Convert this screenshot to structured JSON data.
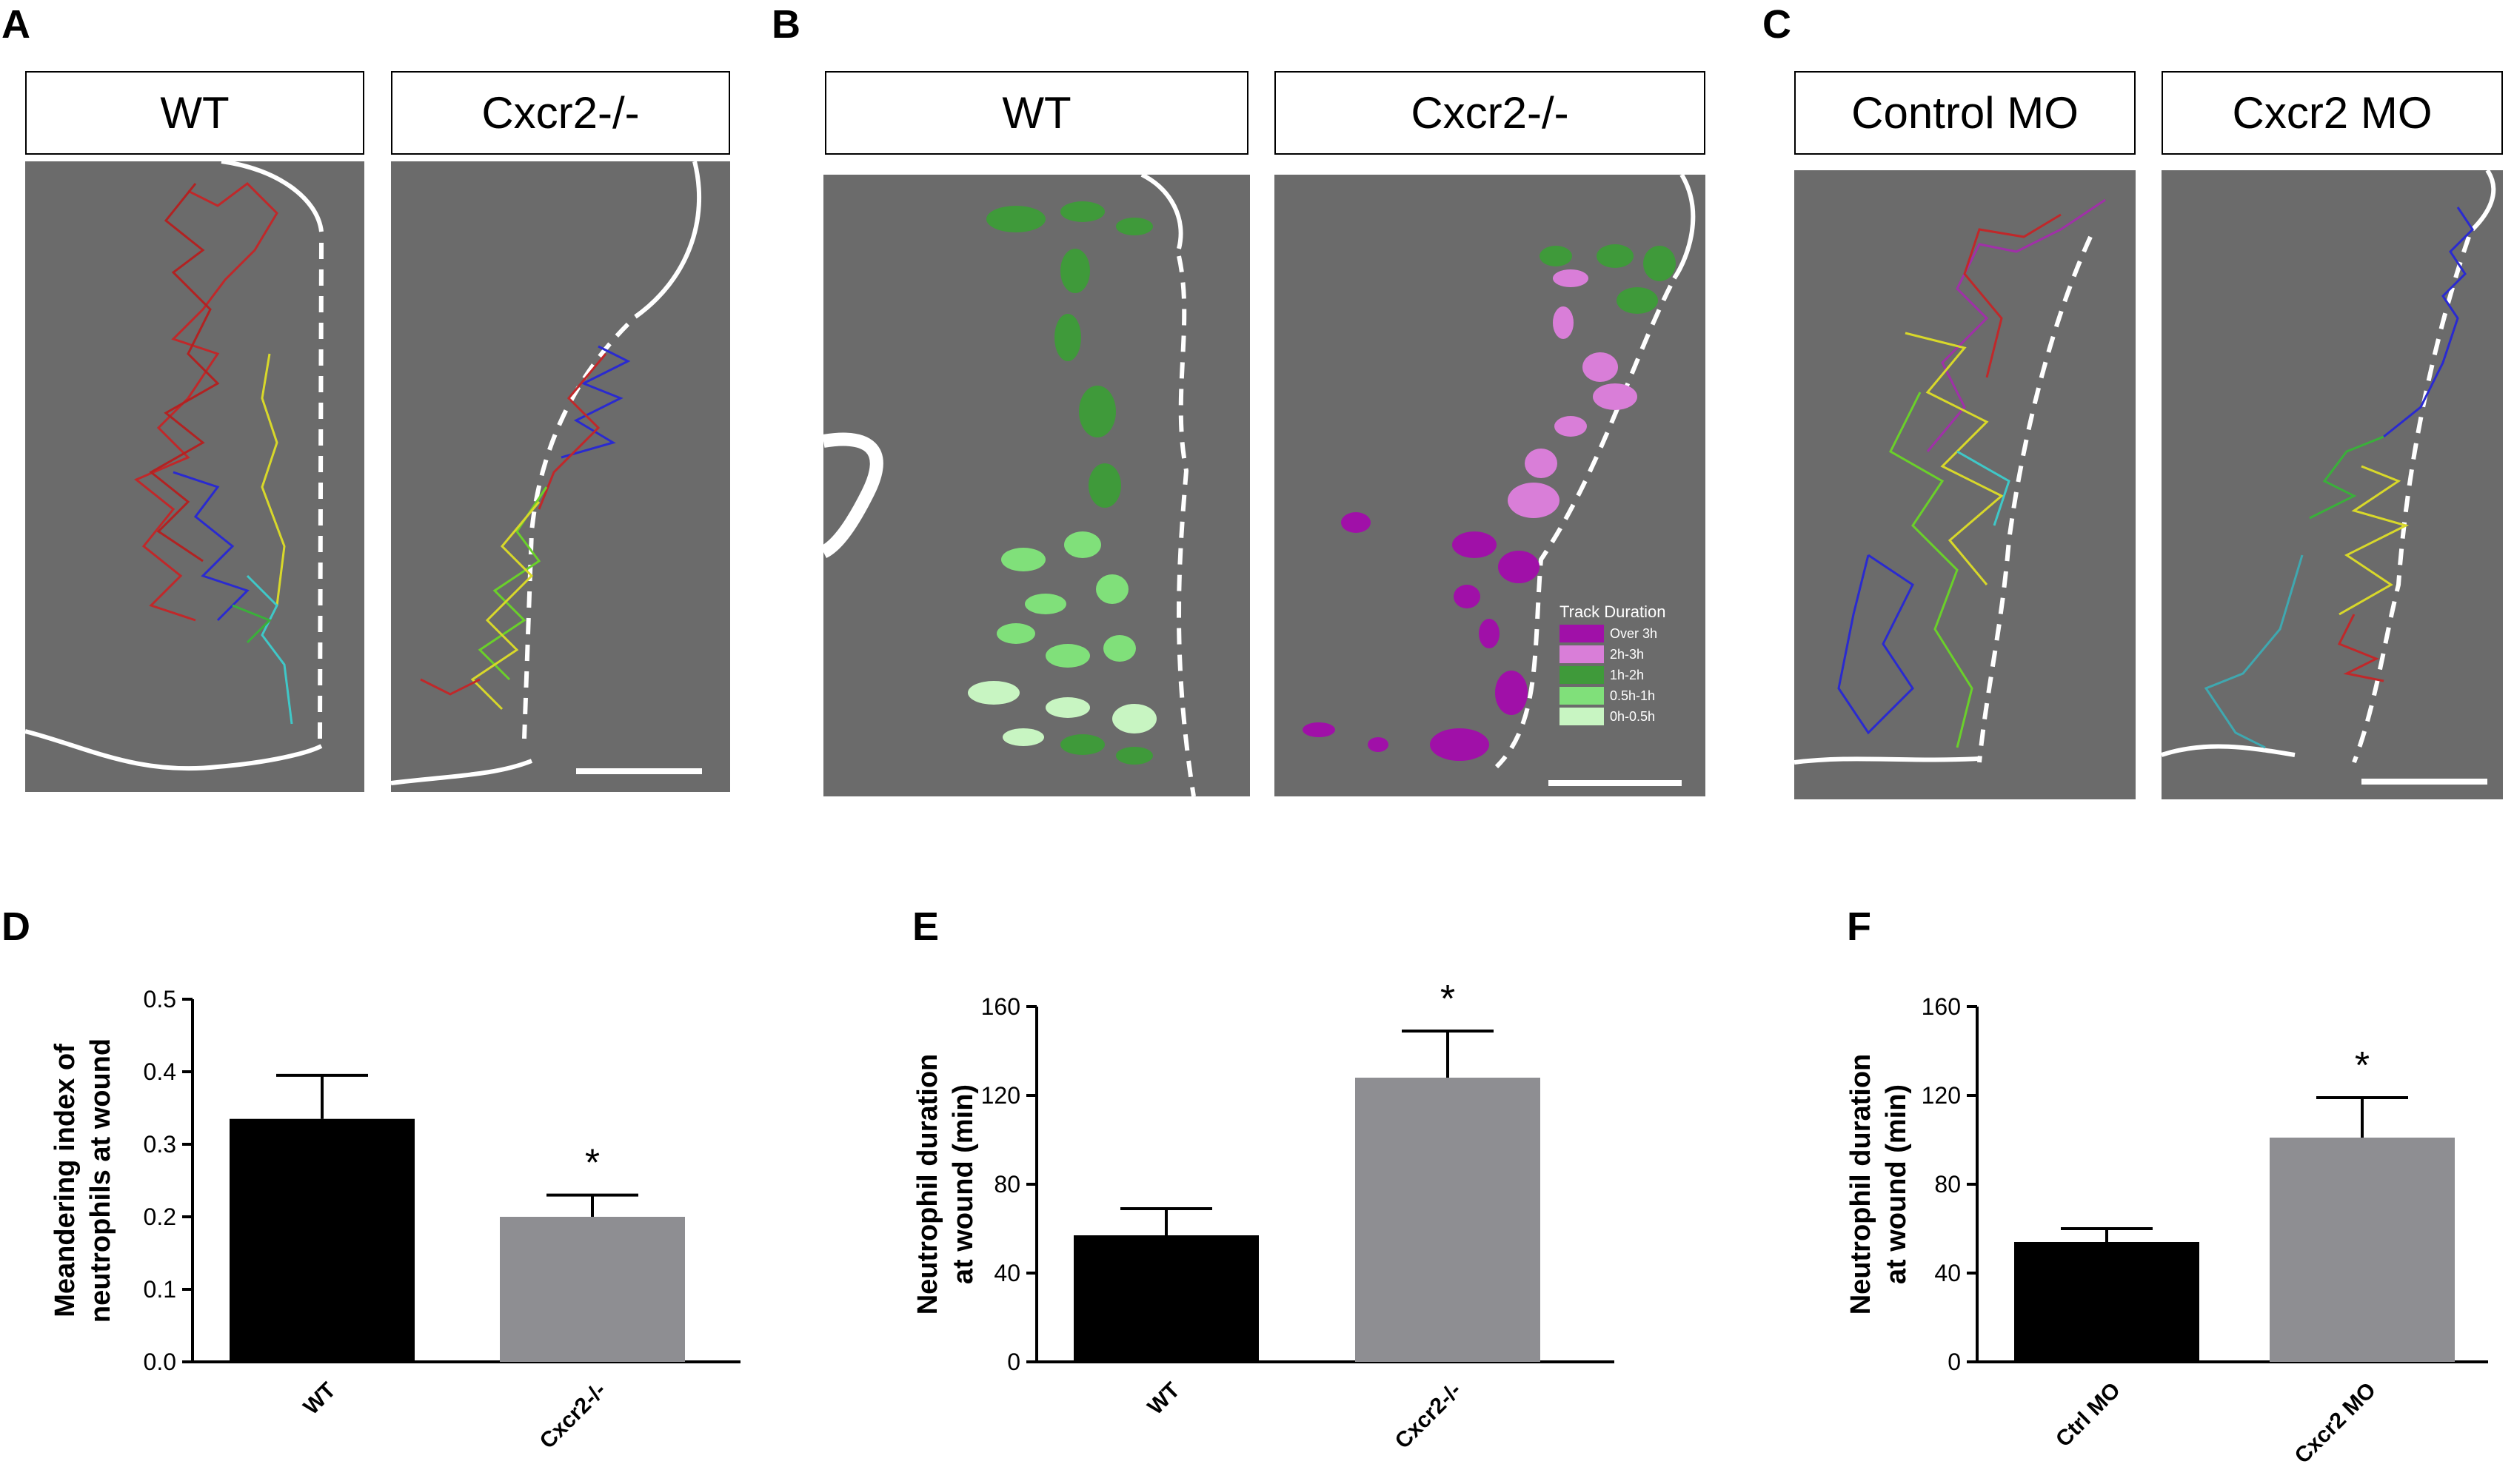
{
  "panels": {
    "A": {
      "letter": "A",
      "left_label": "WT",
      "right_label": "Cxcr2-/-"
    },
    "B": {
      "letter": "B",
      "left_label": "WT",
      "right_label": "Cxcr2-/-",
      "legend": {
        "title": "Track Duration",
        "items": [
          {
            "label": "Over  3h",
            "color": "#a010a8"
          },
          {
            "label": "2h-3h",
            "color": "#d97ed8"
          },
          {
            "label": "1h-2h",
            "color": "#3f9a3a"
          },
          {
            "label": "0.5h-1h",
            "color": "#80e07a"
          },
          {
            "label": "0h-0.5h",
            "color": "#c8f5c2"
          }
        ]
      }
    },
    "C": {
      "letter": "C",
      "left_label": "Control MO",
      "right_label": "Cxcr2 MO"
    },
    "D": {
      "letter": "D"
    },
    "E": {
      "letter": "E"
    },
    "F": {
      "letter": "F"
    }
  },
  "chart_data": [
    {
      "id": "D",
      "type": "bar",
      "categories": [
        "WT",
        "Cxcr2-/-"
      ],
      "values": [
        0.335,
        0.2
      ],
      "errors": [
        0.06,
        0.03
      ],
      "colors": [
        "#000000",
        "#8e8e92"
      ],
      "ylabel": "Meandering index of neutrophils at wound",
      "ylabel_lines": [
        "Meandering index of",
        "neutrophils at wound"
      ],
      "ylim": [
        0,
        0.5
      ],
      "yticks": [
        "0.0",
        "0.1",
        "0.2",
        "0.3",
        "0.4",
        "0.5"
      ],
      "significance": [
        "",
        "*"
      ]
    },
    {
      "id": "E",
      "type": "bar",
      "categories": [
        "WT",
        "Cxcr2-/-"
      ],
      "values": [
        57,
        128
      ],
      "errors": [
        12,
        21
      ],
      "colors": [
        "#000000",
        "#8e8e92"
      ],
      "ylabel": "Neutrophil duration at wound (min)",
      "ylabel_lines": [
        "Neutrophil duration",
        "at wound  (min)"
      ],
      "ylim": [
        0,
        160
      ],
      "yticks": [
        "0",
        "40",
        "80",
        "120",
        "160"
      ],
      "significance": [
        "",
        "*"
      ]
    },
    {
      "id": "F",
      "type": "bar",
      "categories": [
        "Ctrl MO",
        "Cxcr2 MO"
      ],
      "values": [
        54,
        101
      ],
      "errors": [
        6,
        18
      ],
      "colors": [
        "#000000",
        "#8e8e92"
      ],
      "ylabel": "Neutrophil duration at wound (min)",
      "ylabel_lines": [
        "Neutrophil duration",
        "at wound  (min)"
      ],
      "ylim": [
        0,
        160
      ],
      "yticks": [
        "0",
        "40",
        "80",
        "120",
        "160"
      ],
      "significance": [
        "",
        "*"
      ]
    }
  ]
}
